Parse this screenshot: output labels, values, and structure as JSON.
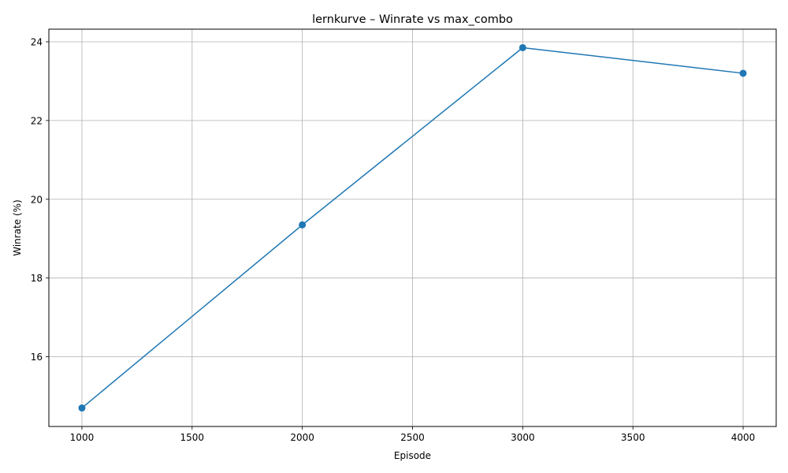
{
  "chart_data": {
    "type": "line",
    "title": "lernkurve – Winrate vs max_combo",
    "xlabel": "Episode",
    "ylabel": "Winrate (%)",
    "x": [
      1000,
      2000,
      3000,
      4000
    ],
    "series": [
      {
        "values": [
          14.7,
          19.35,
          23.85,
          23.2
        ],
        "color": "#1f77b4",
        "marker": "circle"
      }
    ],
    "xlim": [
      850,
      4150
    ],
    "ylim": [
      14.23,
      24.32
    ],
    "xticks": [
      1000,
      1500,
      2000,
      2500,
      3000,
      3500,
      4000
    ],
    "yticks": [
      16,
      18,
      20,
      22,
      24
    ],
    "grid": true,
    "legend": "none"
  }
}
